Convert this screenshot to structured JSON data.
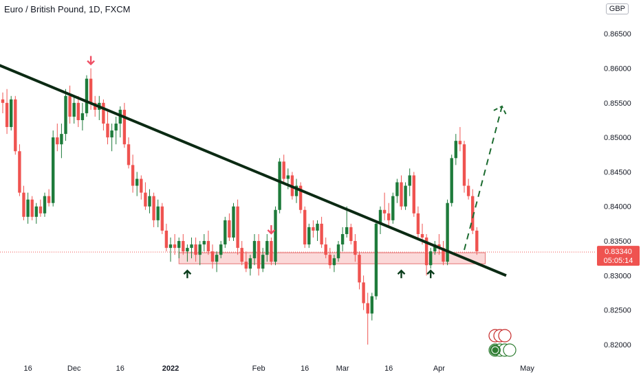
{
  "header": {
    "title": "Euro / British Pound, 1D, FXCM",
    "currency": "GBP"
  },
  "price_label": {
    "price": "0.83340",
    "countdown": "05:05:14"
  },
  "colors": {
    "up": "#26a69a",
    "up_fill": "#1e7b3b",
    "down": "#ef5350",
    "trendline": "#0b2a13",
    "arrow_down": "#ef4f64",
    "arrow_up": "#0b3d1c",
    "zone_fill": "rgba(239,83,80,0.22)",
    "zone_stroke": "#e57373",
    "projection": "#1b6b2f",
    "price_line": "#ef5350"
  },
  "chart_data": {
    "type": "candlestick",
    "title": "Euro / British Pound, 1D, FXCM",
    "ylabel": "GBP",
    "ylim": [
      0.8192,
      0.8691
    ],
    "x_ticks": [
      "16",
      "Dec",
      "16",
      "2022",
      "Feb",
      "16",
      "Mar",
      "16",
      "Apr",
      "May"
    ],
    "y_ticks": [
      "0.82000",
      "0.82500",
      "0.83000",
      "0.83500",
      "0.84000",
      "0.84500",
      "0.85000",
      "0.85500",
      "0.86000",
      "0.86500"
    ],
    "first_bar": "2021-11-08",
    "bars_ohlc": [
      [
        0.8555,
        0.8565,
        0.8535,
        0.855
      ],
      [
        0.855,
        0.857,
        0.8505,
        0.8515
      ],
      [
        0.8515,
        0.856,
        0.851,
        0.8555
      ],
      [
        0.8555,
        0.856,
        0.8475,
        0.848
      ],
      [
        0.848,
        0.849,
        0.8415,
        0.842
      ],
      [
        0.842,
        0.843,
        0.838,
        0.8385
      ],
      [
        0.8385,
        0.842,
        0.8375,
        0.841
      ],
      [
        0.841,
        0.8415,
        0.838,
        0.8385
      ],
      [
        0.8385,
        0.8405,
        0.8375,
        0.84
      ],
      [
        0.84,
        0.841,
        0.8385,
        0.839
      ],
      [
        0.839,
        0.842,
        0.8385,
        0.8415
      ],
      [
        0.8415,
        0.8425,
        0.84,
        0.8405
      ],
      [
        0.8405,
        0.851,
        0.84,
        0.85
      ],
      [
        0.85,
        0.852,
        0.848,
        0.849
      ],
      [
        0.849,
        0.852,
        0.847,
        0.8505
      ],
      [
        0.8505,
        0.857,
        0.8495,
        0.856
      ],
      [
        0.856,
        0.8575,
        0.852,
        0.853
      ],
      [
        0.853,
        0.856,
        0.852,
        0.855
      ],
      [
        0.855,
        0.856,
        0.8515,
        0.8525
      ],
      [
        0.8525,
        0.855,
        0.851,
        0.8535
      ],
      [
        0.8535,
        0.859,
        0.853,
        0.8585
      ],
      [
        0.8585,
        0.86,
        0.854,
        0.855
      ],
      [
        0.855,
        0.856,
        0.853,
        0.854
      ],
      [
        0.854,
        0.856,
        0.8525,
        0.855
      ],
      [
        0.855,
        0.8555,
        0.851,
        0.852
      ],
      [
        0.852,
        0.854,
        0.849,
        0.85
      ],
      [
        0.85,
        0.852,
        0.848,
        0.851
      ],
      [
        0.851,
        0.853,
        0.849,
        0.852
      ],
      [
        0.852,
        0.8545,
        0.85,
        0.854
      ],
      [
        0.854,
        0.855,
        0.8485,
        0.849
      ],
      [
        0.849,
        0.85,
        0.8455,
        0.846
      ],
      [
        0.846,
        0.8475,
        0.842,
        0.843
      ],
      [
        0.843,
        0.845,
        0.8415,
        0.844
      ],
      [
        0.844,
        0.8445,
        0.841,
        0.842
      ],
      [
        0.842,
        0.8435,
        0.8395,
        0.84
      ],
      [
        0.84,
        0.8425,
        0.839,
        0.8415
      ],
      [
        0.8415,
        0.842,
        0.837,
        0.838
      ],
      [
        0.838,
        0.841,
        0.837,
        0.84
      ],
      [
        0.84,
        0.8405,
        0.836,
        0.8365
      ],
      [
        0.8365,
        0.8375,
        0.8335,
        0.834
      ],
      [
        0.834,
        0.8355,
        0.832,
        0.8345
      ],
      [
        0.8345,
        0.836,
        0.833,
        0.834
      ],
      [
        0.834,
        0.8355,
        0.8325,
        0.835
      ],
      [
        0.835,
        0.836,
        0.833,
        0.8335
      ],
      [
        0.8335,
        0.8345,
        0.832,
        0.834
      ],
      [
        0.834,
        0.8355,
        0.8325,
        0.8345
      ],
      [
        0.8345,
        0.8355,
        0.832,
        0.833
      ],
      [
        0.833,
        0.835,
        0.8315,
        0.8345
      ],
      [
        0.8345,
        0.836,
        0.8335,
        0.835
      ],
      [
        0.835,
        0.8365,
        0.833,
        0.8335
      ],
      [
        0.8335,
        0.8345,
        0.831,
        0.832
      ],
      [
        0.832,
        0.8335,
        0.8305,
        0.833
      ],
      [
        0.833,
        0.835,
        0.8325,
        0.8345
      ],
      [
        0.8345,
        0.8385,
        0.834,
        0.838
      ],
      [
        0.838,
        0.839,
        0.835,
        0.8355
      ],
      [
        0.8355,
        0.8405,
        0.835,
        0.84
      ],
      [
        0.84,
        0.841,
        0.833,
        0.834
      ],
      [
        0.834,
        0.835,
        0.8315,
        0.832
      ],
      [
        0.832,
        0.8335,
        0.8305,
        0.831
      ],
      [
        0.831,
        0.833,
        0.83,
        0.8325
      ],
      [
        0.8325,
        0.836,
        0.8315,
        0.835
      ],
      [
        0.835,
        0.836,
        0.83,
        0.831
      ],
      [
        0.831,
        0.834,
        0.8305,
        0.833
      ],
      [
        0.833,
        0.836,
        0.832,
        0.835
      ],
      [
        0.835,
        0.8355,
        0.8315,
        0.832
      ],
      [
        0.832,
        0.84,
        0.8315,
        0.8395
      ],
      [
        0.8395,
        0.847,
        0.839,
        0.8465
      ],
      [
        0.8465,
        0.8475,
        0.8435,
        0.844
      ],
      [
        0.844,
        0.8455,
        0.8425,
        0.8445
      ],
      [
        0.8445,
        0.845,
        0.841,
        0.8415
      ],
      [
        0.8415,
        0.844,
        0.8405,
        0.843
      ],
      [
        0.843,
        0.8435,
        0.839,
        0.8395
      ],
      [
        0.8395,
        0.84,
        0.834,
        0.8345
      ],
      [
        0.8345,
        0.8375,
        0.834,
        0.837
      ],
      [
        0.837,
        0.838,
        0.8355,
        0.8365
      ],
      [
        0.8365,
        0.838,
        0.835,
        0.8375
      ],
      [
        0.8375,
        0.8385,
        0.834,
        0.8345
      ],
      [
        0.8345,
        0.8355,
        0.8325,
        0.833
      ],
      [
        0.833,
        0.834,
        0.831,
        0.8315
      ],
      [
        0.8315,
        0.833,
        0.8305,
        0.8325
      ],
      [
        0.8325,
        0.835,
        0.832,
        0.8345
      ],
      [
        0.8345,
        0.837,
        0.8335,
        0.836
      ],
      [
        0.836,
        0.84,
        0.8355,
        0.837
      ],
      [
        0.837,
        0.8375,
        0.8345,
        0.835
      ],
      [
        0.835,
        0.836,
        0.832,
        0.833
      ],
      [
        0.833,
        0.8335,
        0.828,
        0.829
      ],
      [
        0.829,
        0.83,
        0.825,
        0.826
      ],
      [
        0.826,
        0.8275,
        0.82,
        0.8245
      ],
      [
        0.8245,
        0.8275,
        0.8235,
        0.827
      ],
      [
        0.827,
        0.838,
        0.8265,
        0.8375
      ],
      [
        0.8375,
        0.84,
        0.836,
        0.8395
      ],
      [
        0.8395,
        0.842,
        0.838,
        0.839
      ],
      [
        0.839,
        0.8405,
        0.837,
        0.838
      ],
      [
        0.838,
        0.842,
        0.8375,
        0.8415
      ],
      [
        0.8415,
        0.844,
        0.8405,
        0.8435
      ],
      [
        0.8435,
        0.8445,
        0.8395,
        0.84
      ],
      [
        0.84,
        0.8435,
        0.8395,
        0.843
      ],
      [
        0.843,
        0.8455,
        0.8415,
        0.8445
      ],
      [
        0.8445,
        0.845,
        0.8385,
        0.839
      ],
      [
        0.839,
        0.84,
        0.8355,
        0.836
      ],
      [
        0.836,
        0.8375,
        0.8345,
        0.8355
      ],
      [
        0.8355,
        0.836,
        0.83,
        0.8315
      ],
      [
        0.8315,
        0.834,
        0.831,
        0.8335
      ],
      [
        0.8335,
        0.835,
        0.833,
        0.8345
      ],
      [
        0.8345,
        0.836,
        0.833,
        0.834
      ],
      [
        0.834,
        0.835,
        0.8315,
        0.832
      ],
      [
        0.832,
        0.841,
        0.8315,
        0.8405
      ],
      [
        0.8405,
        0.8475,
        0.84,
        0.847
      ],
      [
        0.847,
        0.8505,
        0.846,
        0.8495
      ],
      [
        0.8495,
        0.8515,
        0.848,
        0.849
      ],
      [
        0.849,
        0.8495,
        0.842,
        0.843
      ],
      [
        0.843,
        0.844,
        0.841,
        0.8415
      ],
      [
        0.8415,
        0.8425,
        0.836,
        0.8365
      ],
      [
        0.8365,
        0.837,
        0.833,
        0.8335
      ]
    ],
    "annotations": {
      "trendline": {
        "from": [
          "2021-11-01",
          0.8615
        ],
        "to": [
          "2022-04-25",
          0.83
        ]
      },
      "support_zone": {
        "from": "2022-01-05",
        "to": "2022-04-18",
        "low": 0.8317,
        "high": 0.8333
      },
      "projection": {
        "from": [
          "2022-04-11",
          0.8337
        ],
        "to": [
          "2022-04-22",
          0.8545
        ]
      },
      "last_price": 0.8334,
      "down_arrows": [
        "2021-12-07",
        "2022-02-04"
      ],
      "up_arrows": [
        "2022-01-07",
        "2022-03-21",
        "2022-03-30"
      ]
    }
  }
}
